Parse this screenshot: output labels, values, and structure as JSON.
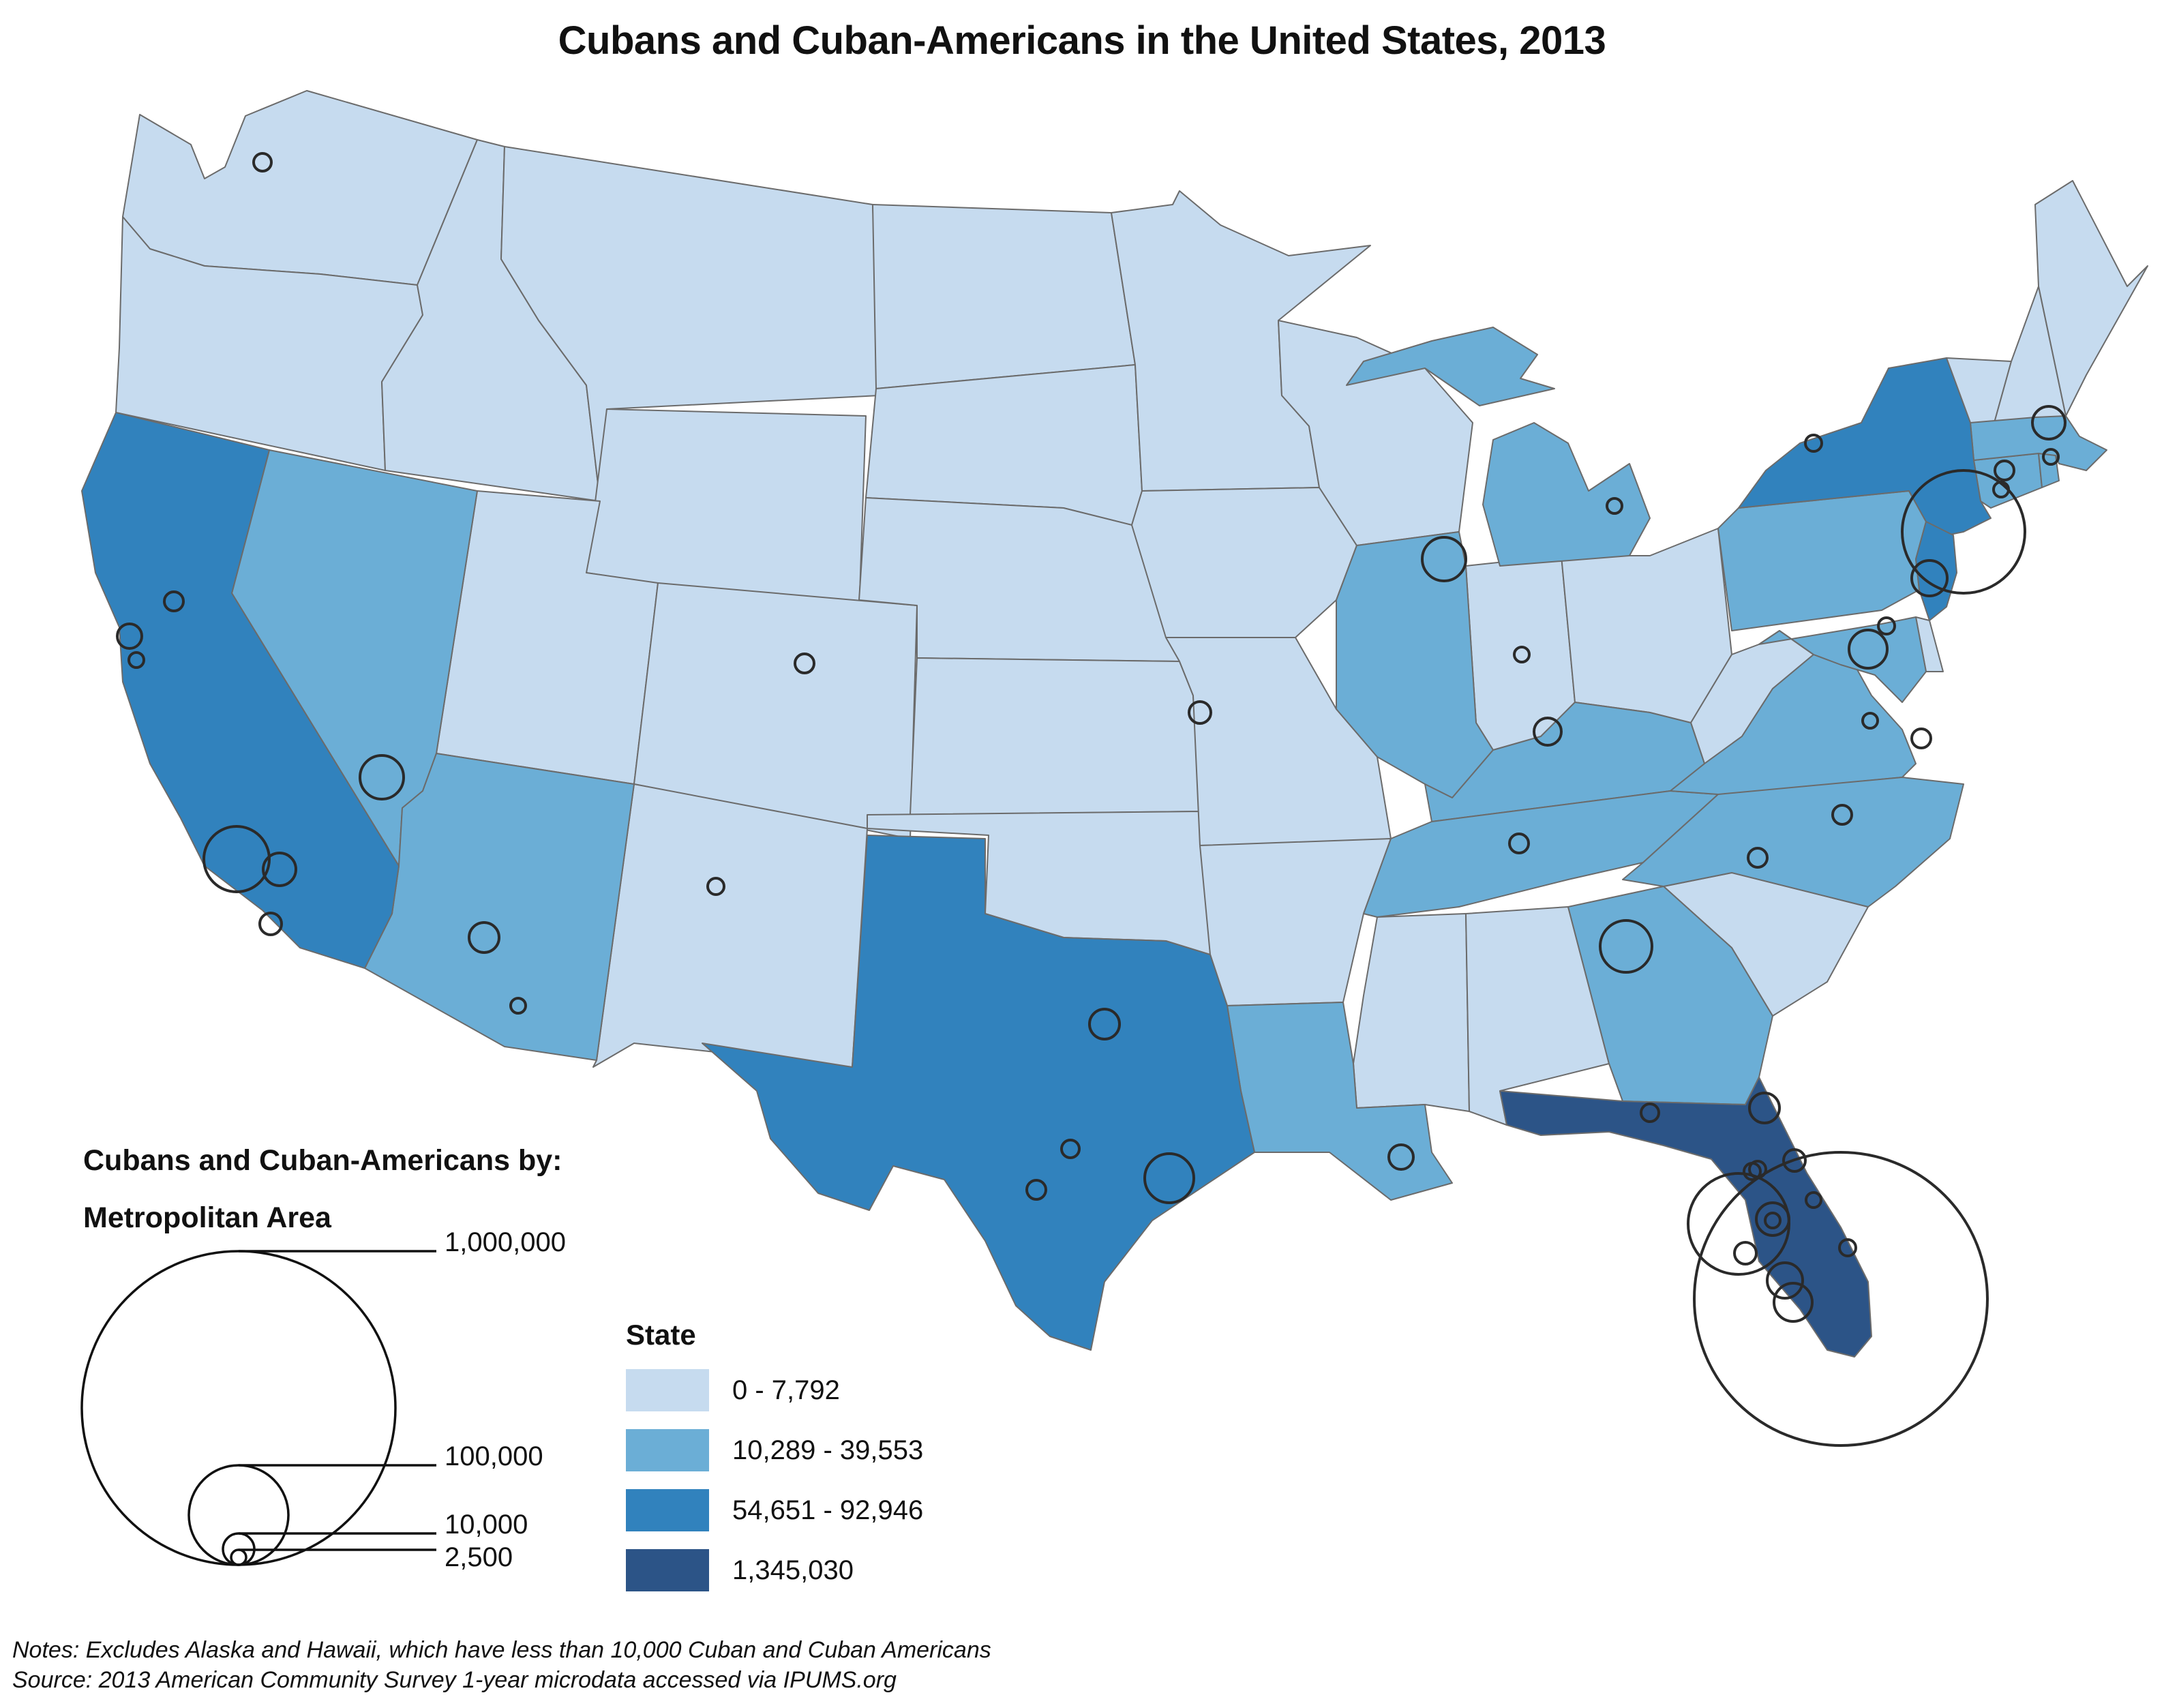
{
  "title": "Cubans and Cuban-Americans in the United States, 2013",
  "metro_legend": {
    "title_line1": "Cubans and  Cuban-Americans by:",
    "title_line2": "Metropolitan Area",
    "sizes": [
      {
        "label": "1,000,000",
        "value": 1000000
      },
      {
        "label": "100,000",
        "value": 100000
      },
      {
        "label": "10,000",
        "value": 10000
      },
      {
        "label": "2,500",
        "value": 2500
      }
    ]
  },
  "state_legend": {
    "title": "State",
    "classes": [
      {
        "label": "0 - 7,792",
        "color": "#c6dbef"
      },
      {
        "label": "10,289 - 39,553",
        "color": "#6baed6"
      },
      {
        "label": "54,651 - 92,946",
        "color": "#3182bd"
      },
      {
        "label": "1,345,030",
        "color": "#2c5487"
      }
    ]
  },
  "colors": {
    "class1": "#c6dbef",
    "class2": "#6baed6",
    "class3": "#3182bd",
    "class4": "#2c5487",
    "border": "#6b6b6b",
    "circle": "#2a2a2a"
  },
  "notes": {
    "line1": "Notes: Excludes Alaska and Hawaii, which have less than 10,000 Cuban and Cuban Americans",
    "line2": "Source: 2013 American Community Survey 1-year microdata accessed via IPUMS.org"
  }
}
